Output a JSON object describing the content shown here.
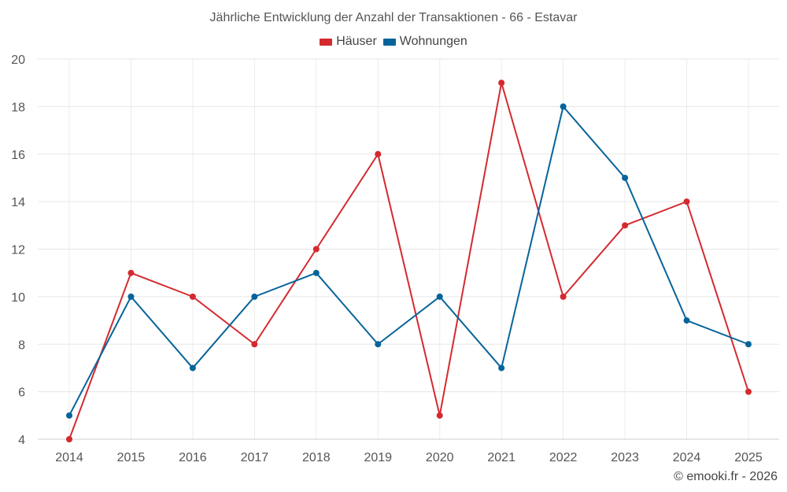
{
  "chart_data": {
    "type": "line",
    "title": "Jährliche Entwicklung der Anzahl der Transaktionen - 66 - Estavar",
    "categories": [
      "2014",
      "2015",
      "2016",
      "2017",
      "2018",
      "2019",
      "2020",
      "2021",
      "2022",
      "2023",
      "2024",
      "2025"
    ],
    "series": [
      {
        "name": "Häuser",
        "color": "#d42a2f",
        "values": [
          4,
          11,
          10,
          8,
          12,
          16,
          5,
          19,
          10,
          13,
          14,
          6
        ]
      },
      {
        "name": "Wohnungen",
        "color": "#07649b",
        "values": [
          5,
          10,
          7,
          10,
          11,
          8,
          10,
          7,
          18,
          15,
          9,
          8
        ]
      }
    ],
    "ylim": [
      4,
      20
    ],
    "yticks": [
      4,
      6,
      8,
      10,
      12,
      14,
      16,
      18,
      20
    ],
    "xlabel": "",
    "ylabel": "",
    "grid": true,
    "legend_position": "top-center"
  },
  "credit": "© emooki.fr - 2026"
}
